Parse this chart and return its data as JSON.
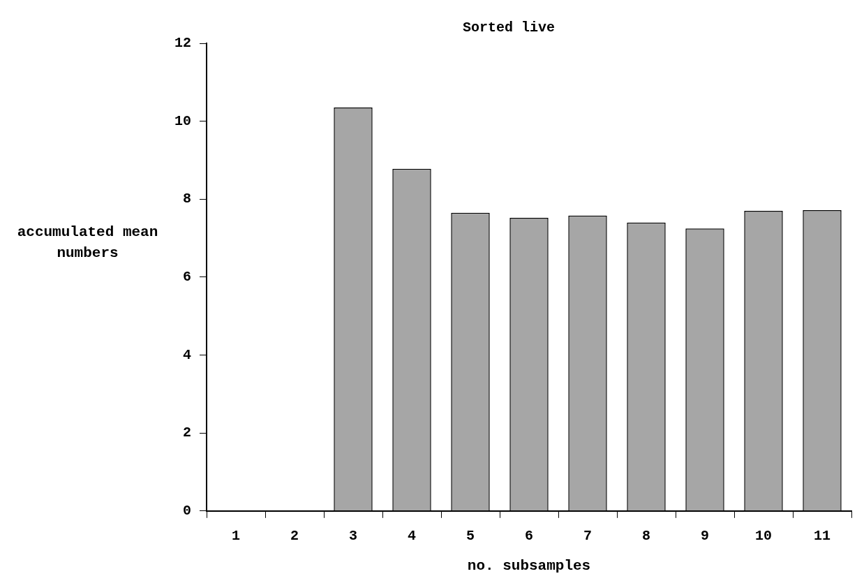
{
  "chart_data": {
    "type": "bar",
    "title": "Sorted live",
    "xlabel": "no. subsamples",
    "ylabel": "accumulated mean numbers",
    "categories": [
      "1",
      "2",
      "3",
      "4",
      "5",
      "6",
      "7",
      "8",
      "9",
      "10",
      "11"
    ],
    "values": [
      0,
      0,
      10.35,
      8.78,
      7.65,
      7.52,
      7.58,
      7.4,
      7.25,
      7.7,
      7.72
    ],
    "color": "#a6a6a6",
    "ylim": [
      0,
      12
    ],
    "yticks": [
      0,
      2,
      4,
      6,
      8,
      10,
      12
    ],
    "grid": false,
    "legend": false
  }
}
